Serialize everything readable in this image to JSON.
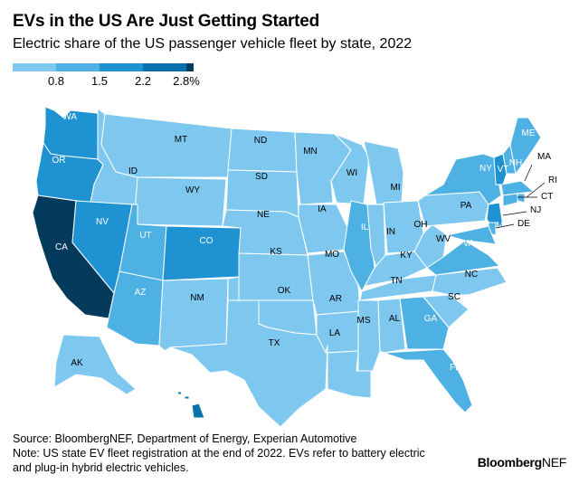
{
  "header": {
    "title": "EVs in the US Are Just Getting Started",
    "subtitle": "Electric share of the US passenger vehicle fleet by state, 2022"
  },
  "legend": {
    "colors": [
      "#7ec8ef",
      "#4eb1e4",
      "#1f93d1",
      "#0a71ad",
      "#043a5c"
    ],
    "ticks": [
      "0.8",
      "1.5",
      "2.2",
      "2.8%"
    ]
  },
  "map_data": {
    "type": "choropleth",
    "states": [
      {
        "code": "WA",
        "bin": 2
      },
      {
        "code": "OR",
        "bin": 2
      },
      {
        "code": "CA",
        "bin": 4
      },
      {
        "code": "ID",
        "bin": 0
      },
      {
        "code": "NV",
        "bin": 2
      },
      {
        "code": "MT",
        "bin": 0
      },
      {
        "code": "WY",
        "bin": 0
      },
      {
        "code": "UT",
        "bin": 1
      },
      {
        "code": "AZ",
        "bin": 1
      },
      {
        "code": "CO",
        "bin": 2
      },
      {
        "code": "NM",
        "bin": 0
      },
      {
        "code": "ND",
        "bin": 0
      },
      {
        "code": "SD",
        "bin": 0
      },
      {
        "code": "NE",
        "bin": 0
      },
      {
        "code": "KS",
        "bin": 0
      },
      {
        "code": "OK",
        "bin": 0
      },
      {
        "code": "TX",
        "bin": 0
      },
      {
        "code": "MN",
        "bin": 0
      },
      {
        "code": "IA",
        "bin": 0
      },
      {
        "code": "MO",
        "bin": 0
      },
      {
        "code": "AR",
        "bin": 0
      },
      {
        "code": "LA",
        "bin": 0
      },
      {
        "code": "WI",
        "bin": 0
      },
      {
        "code": "IL",
        "bin": 1
      },
      {
        "code": "MI",
        "bin": 0
      },
      {
        "code": "IN",
        "bin": 0
      },
      {
        "code": "OH",
        "bin": 0
      },
      {
        "code": "KY",
        "bin": 0
      },
      {
        "code": "TN",
        "bin": 0
      },
      {
        "code": "MS",
        "bin": 0
      },
      {
        "code": "AL",
        "bin": 0
      },
      {
        "code": "GA",
        "bin": 1
      },
      {
        "code": "FL",
        "bin": 1
      },
      {
        "code": "SC",
        "bin": 0
      },
      {
        "code": "NC",
        "bin": 0
      },
      {
        "code": "VA",
        "bin": 1
      },
      {
        "code": "WV",
        "bin": 0
      },
      {
        "code": "PA",
        "bin": 0
      },
      {
        "code": "NY",
        "bin": 1
      },
      {
        "code": "VT",
        "bin": 2
      },
      {
        "code": "NH",
        "bin": 1
      },
      {
        "code": "ME",
        "bin": 1
      },
      {
        "code": "MA",
        "bin": 1
      },
      {
        "code": "RI",
        "bin": 1
      },
      {
        "code": "CT",
        "bin": 1
      },
      {
        "code": "NJ",
        "bin": 2
      },
      {
        "code": "DE",
        "bin": 1
      },
      {
        "code": "MD",
        "bin": 1
      },
      {
        "code": "AK",
        "bin": 0
      },
      {
        "code": "HI",
        "bin": 3
      }
    ]
  },
  "footer": {
    "source": "Source: BloombergNEF, Department of Energy, Experian Automotive",
    "note": "Note: US state EV fleet registration at the end of 2022. EVs refer to battery electric and plug-in hybrid electric vehicles.",
    "brand_bold": "Bloomberg",
    "brand_light": "NEF"
  }
}
